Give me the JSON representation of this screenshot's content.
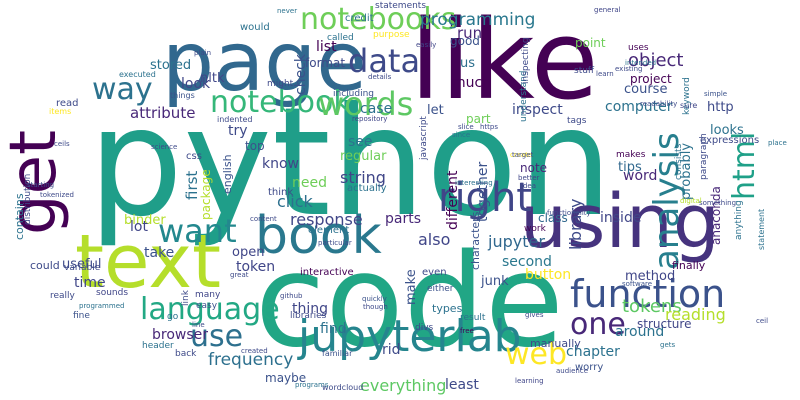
{
  "title": "",
  "colors": {
    "background": "#ffffff",
    "python": "#1f9e89",
    "code": "#21a685",
    "like": "#440154",
    "page": "#31688e",
    "text": "#b5de2b",
    "using": "#46337e",
    "book": "#2a788e",
    "function": "#3b528b",
    "jupyterlab": "#25858e",
    "notebooks": "#6ece58",
    "notebook": "#35b779",
    "data": "#3e4a89",
    "words": "#5dc863",
    "way": "#2c728e",
    "right": "#404688",
    "want": "#23888e",
    "language": "#22a884",
    "use": "#2d708e",
    "web": "#fde725",
    "one": "#482878",
    "analysis": "#277f8e",
    "html": "#1fa088",
    "get": "#440154"
  },
  "words": {
    "python": "python",
    "code": "code",
    "like": "like",
    "page": "page",
    "text": "text",
    "using": "using",
    "book": "book",
    "function": "function",
    "jupyterlab": "jupyterlab",
    "notebooks": "notebooks",
    "notebook": "notebook",
    "data": "data",
    "words": "words",
    "way": "way",
    "right": "right",
    "want": "want",
    "language": "language",
    "use": "use",
    "web": "web",
    "one": "one",
    "analysis": "analysis",
    "html": "html",
    "get": "get",
    "object": "object",
    "programming": "programming",
    "library": "library",
    "tokens": "tokens",
    "reading": "reading",
    "jupyter": "jupyter",
    "response": "response",
    "parts": "parts",
    "list": "list",
    "format": "format",
    "stored": "stored",
    "look": "look",
    "attribute": "attribute",
    "try": "try",
    "top": "top",
    "know": "know",
    "click": "click",
    "string": "string",
    "check": "check",
    "case": "case",
    "regular": "regular",
    "see": "see",
    "need": "need",
    "first": "first",
    "package": "package",
    "take": "take",
    "open": "open",
    "token": "token",
    "frequency": "frequency",
    "browser": "browser",
    "maybe": "maybe",
    "thing": "thing",
    "find": "find",
    "rid": "rid",
    "junk": "junk",
    "everything": "everything",
    "least": "least",
    "make": "make",
    "also": "also",
    "second": "second",
    "button": "button",
    "method": "method",
    "chapter": "chapter",
    "around": "around",
    "structure": "structure",
    "finally": "finally",
    "course": "course",
    "computer": "computer",
    "let": "let",
    "inspect": "inspect",
    "part": "part",
    "note": "note",
    "together": "together",
    "different": "different",
    "word": "word",
    "tips": "tips",
    "inside": "inside",
    "class": "class",
    "probably": "probably",
    "anaconda": "anaconda",
    "looks": "looks",
    "http": "http",
    "point": "point",
    "project": "project",
    "run": "run",
    "much": "much",
    "us": "us",
    "good": "good",
    "statements": "statements",
    "nltk": "nltk",
    "english": "english",
    "binder": "binder",
    "useful": "useful",
    "lot": "lot",
    "time": "time",
    "distribution": "distribution",
    "contains": "contains",
    "could": "could",
    "interactive": "interactive",
    "even": "even",
    "types": "types",
    "characters": "characters",
    "manually": "manually",
    "worry": "worry",
    "expressions": "expressions",
    "keyword": "keyword",
    "uses": "uses",
    "would": "would",
    "credit": "credit",
    "purpose": "purpose",
    "called": "called",
    "including": "including",
    "indented": "indented",
    "repository": "repository",
    "things": "things",
    "executed": "executed",
    "read": "read",
    "items": "items",
    "css": "css",
    "element": "element",
    "think": "think",
    "actually": "actually",
    "javascript": "javascript",
    "either": "either",
    "work": "work",
    "makes": "makes",
    "anything": "anything",
    "statement": "statement",
    "paragraph": "paragraph",
    "consists": "consists",
    "sure": "sure",
    "simple": "simple",
    "place": "place",
    "stuff": "stuff",
    "understand": "understand",
    "inspecting": "inspecting",
    "easily": "easily",
    "divs": "divs",
    "sounds": "sounds",
    "variable": "variable",
    "really": "really",
    "fine": "fine",
    "programmed": "programmed",
    "go": "go",
    "link": "link",
    "many": "many",
    "easy": "easy",
    "libraries": "libraries",
    "quickly": "quickly",
    "though": "though",
    "result": "result",
    "free": "free",
    "software": "software",
    "gives": "gives",
    "gets": "gets",
    "audience": "audience",
    "learning": "learning",
    "wordcloud": "wordcloud",
    "familiar": "familiar",
    "created": "created",
    "header": "header",
    "back": "back",
    "line": "line",
    "github": "github",
    "programs": "programs",
    "content": "content",
    "particular": "particular",
    "since": "since",
    "slice": "slice",
    "create": "create",
    "https": "https",
    "interesting": "interesting",
    "better": "better",
    "idea": "idea",
    "target": "target",
    "functionality": "functionality",
    "something": "something",
    "digital": "digital",
    "tags": "tags",
    "learn": "learn",
    "existing": "existing",
    "intended": "intended",
    "readability": "readability",
    "general": "general",
    "plain": "plain",
    "never": "never",
    "might": "might",
    "details": "details",
    "ceil": "ceil",
    "science": "science",
    "tokenized": "tokenized",
    "starting": "starting",
    "great": "great",
    "ceils": "ceils"
  }
}
